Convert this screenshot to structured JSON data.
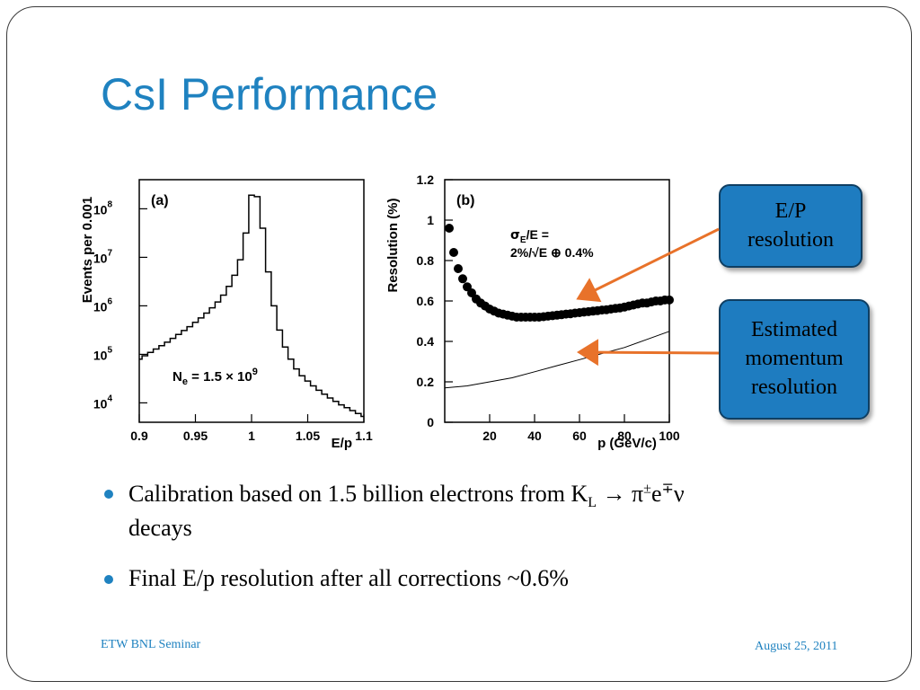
{
  "slide": {
    "title": "CsI Performance",
    "bullets": [
      {
        "parts": [
          "Calibration based on 1.5 billion electrons from K",
          "L",
          " → π",
          "±",
          "e",
          "∓",
          "ν"
        ],
        "continuation": "decays"
      },
      {
        "text": "Final E/p resolution after all corrections ~0.6%"
      }
    ],
    "footer_left": "ETW BNL Seminar",
    "footer_right": "August 25, 2011"
  },
  "callouts": {
    "ep": [
      "E/P",
      "resolution"
    ],
    "momentum": [
      "Estimated",
      "momentum",
      "resolution"
    ],
    "arrow_color": "#e8722a",
    "box_color": "#1e7cc0"
  },
  "chart_data": [
    {
      "type": "line",
      "panel_label": "(a)",
      "xlabel": "E/p",
      "ylabel": "Events per 0.001",
      "xlim": [
        0.9,
        1.1
      ],
      "ylim_log10": [
        3.6,
        8.6
      ],
      "log_y": true,
      "x_ticks": [
        "0.9",
        "0.95",
        "1",
        "1.05",
        "1.1"
      ],
      "y_ticks": [
        {
          "base": "10",
          "exp": "4"
        },
        {
          "base": "10",
          "exp": "5"
        },
        {
          "base": "10",
          "exp": "6"
        },
        {
          "base": "10",
          "exp": "7"
        },
        {
          "base": "10",
          "exp": "8"
        }
      ],
      "annotation": {
        "prefix": "N",
        "sub": "e",
        "middle": " = 1.5 × 10",
        "sup": "9"
      },
      "series": [
        {
          "style": "histogram",
          "x": [
            0.9,
            0.905,
            0.91,
            0.915,
            0.92,
            0.925,
            0.93,
            0.935,
            0.94,
            0.945,
            0.95,
            0.955,
            0.96,
            0.965,
            0.97,
            0.975,
            0.98,
            0.985,
            0.99,
            0.995,
            1.0,
            1.005,
            1.01,
            1.015,
            1.02,
            1.025,
            1.03,
            1.035,
            1.04,
            1.045,
            1.05,
            1.055,
            1.06,
            1.065,
            1.07,
            1.075,
            1.08,
            1.085,
            1.09,
            1.095,
            1.1
          ],
          "log10_values": [
            4.9,
            4.97,
            5.04,
            5.11,
            5.18,
            5.25,
            5.33,
            5.41,
            5.49,
            5.57,
            5.66,
            5.75,
            5.85,
            5.96,
            6.08,
            6.22,
            6.4,
            6.63,
            6.95,
            7.5,
            8.28,
            8.25,
            7.6,
            6.7,
            6.0,
            5.5,
            5.15,
            4.9,
            4.7,
            4.56,
            4.45,
            4.35,
            4.26,
            4.18,
            4.1,
            4.03,
            3.96,
            3.9,
            3.84,
            3.78,
            3.72
          ]
        }
      ]
    },
    {
      "type": "scatter",
      "panel_label": "(b)",
      "xlabel": "p (GeV/c)",
      "ylabel": "Resolution (%)",
      "xlim": [
        0,
        100
      ],
      "ylim": [
        0,
        1.2
      ],
      "x_ticks": [
        "20",
        "40",
        "60",
        "80",
        "100"
      ],
      "y_ticks": [
        "0",
        "0.2",
        "0.4",
        "0.6",
        "0.8",
        "1",
        "1.2"
      ],
      "annotation": [
        "σ",
        "E",
        "/E =",
        "2%/√E ⊕ 0.4%"
      ],
      "series": [
        {
          "style": "points",
          "x": [
            2,
            4,
            6,
            8,
            10,
            12,
            14,
            16,
            18,
            20,
            22,
            24,
            26,
            28,
            30,
            32,
            34,
            36,
            38,
            40,
            42,
            44,
            46,
            48,
            50,
            52,
            54,
            56,
            58,
            60,
            62,
            64,
            66,
            68,
            70,
            72,
            74,
            76,
            78,
            80,
            82,
            84,
            86,
            88,
            90,
            92,
            94,
            96,
            98,
            100
          ],
          "y": [
            0.96,
            0.84,
            0.76,
            0.71,
            0.67,
            0.64,
            0.61,
            0.59,
            0.575,
            0.56,
            0.55,
            0.54,
            0.535,
            0.53,
            0.525,
            0.52,
            0.52,
            0.52,
            0.52,
            0.52,
            0.52,
            0.522,
            0.525,
            0.527,
            0.53,
            0.532,
            0.535,
            0.537,
            0.54,
            0.542,
            0.545,
            0.547,
            0.55,
            0.552,
            0.555,
            0.557,
            0.56,
            0.563,
            0.566,
            0.57,
            0.575,
            0.58,
            0.585,
            0.59,
            0.59,
            0.595,
            0.6,
            0.6,
            0.605,
            0.605
          ]
        },
        {
          "style": "line",
          "x": [
            0,
            10,
            20,
            30,
            40,
            50,
            60,
            70,
            80,
            90,
            100
          ],
          "y": [
            0.17,
            0.18,
            0.2,
            0.22,
            0.25,
            0.28,
            0.31,
            0.34,
            0.37,
            0.41,
            0.45
          ]
        }
      ]
    }
  ]
}
